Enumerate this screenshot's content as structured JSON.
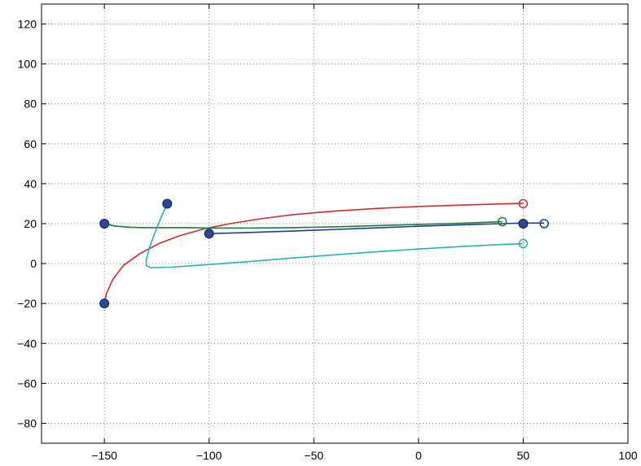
{
  "chart_data": {
    "type": "line",
    "title": "",
    "xlabel": "",
    "ylabel": "",
    "xlim": [
      -180,
      100
    ],
    "ylim": [
      -90,
      130
    ],
    "xticks": [
      -150,
      -100,
      -50,
      0,
      50,
      100
    ],
    "xtick_labels": [
      "−150",
      "−100",
      "−50",
      "0",
      "50",
      "100"
    ],
    "yticks": [
      -80,
      -60,
      -40,
      -20,
      0,
      20,
      40,
      60,
      80,
      100,
      120
    ],
    "ytick_labels": [
      "−80",
      "−60",
      "−40",
      "−20",
      "0",
      "20",
      "40",
      "60",
      "80",
      "100",
      "120"
    ],
    "grid": true,
    "grid_style": "dotted",
    "legend": "none",
    "marker_fill_color": "#2b4a96",
    "series": [
      {
        "color": "#d42a2a",
        "x": [
          -150,
          -149,
          -146,
          -141,
          -133,
          -124,
          -114,
          -102,
          -90,
          -75,
          -60,
          -40,
          -20,
          0,
          20,
          40,
          50
        ],
        "y": [
          -20,
          -15,
          -8,
          -1,
          5,
          10,
          14,
          17.5,
          20,
          22.5,
          24.5,
          26.3,
          27.6,
          28.6,
          29.3,
          29.9,
          30.2
        ],
        "start": [
          -150,
          -20
        ],
        "end": [
          50,
          30
        ]
      },
      {
        "color": "#1a7a3a",
        "x": [
          -150,
          -145,
          -138,
          -130,
          -120,
          -110,
          -100,
          -80,
          -60,
          -40,
          -20,
          0,
          20,
          30,
          40
        ],
        "y": [
          20,
          18.8,
          18.2,
          18,
          18,
          18,
          17.8,
          17.8,
          18,
          18.4,
          19,
          19.6,
          20.2,
          20.6,
          21
        ],
        "start": [
          -150,
          20
        ],
        "end": [
          40,
          21
        ]
      },
      {
        "color": "#1f3d8f",
        "x": [
          -100,
          -80,
          -60,
          -40,
          -20,
          0,
          20,
          40,
          50,
          60
        ],
        "y": [
          15,
          15.6,
          16.3,
          17.1,
          17.9,
          18.7,
          19.4,
          20,
          20.3,
          20.3
        ],
        "start": [
          -100,
          15
        ],
        "end": [
          60,
          20
        ],
        "midpoint": [
          50,
          20
        ]
      },
      {
        "color": "#25b3b3",
        "x": [
          -120,
          -123,
          -126,
          -128.5,
          -130,
          -130,
          -128,
          -124,
          -118,
          -110,
          -100,
          -90,
          -75,
          -60,
          -40,
          -20,
          0,
          20,
          40,
          50
        ],
        "y": [
          30,
          23,
          15,
          8,
          2,
          -1,
          -2,
          -2,
          -1.8,
          -1.2,
          -0.5,
          0.3,
          1.5,
          2.8,
          4.4,
          5.9,
          7.3,
          8.5,
          9.6,
          10
        ],
        "start": [
          -120,
          30
        ],
        "end": [
          50,
          10
        ]
      }
    ]
  }
}
